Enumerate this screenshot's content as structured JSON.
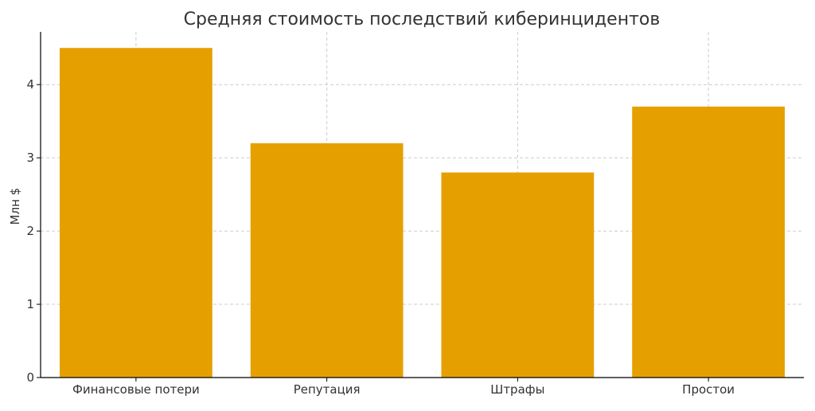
{
  "chart_data": {
    "type": "bar",
    "title": "Средняя стоимость последствий киберинцидентов",
    "xlabel": "",
    "ylabel": "Млн $",
    "categories": [
      "Финансовые потери",
      "Репутация",
      "Штрафы",
      "Простои"
    ],
    "values": [
      4.5,
      3.2,
      2.8,
      3.7
    ],
    "ylim": [
      0,
      4.72
    ],
    "yticks": [
      0,
      1,
      2,
      3,
      4
    ],
    "grid": true,
    "bar_color": "#e5a000",
    "grid_color": "#cccccc",
    "axis_color": "#000000",
    "text_color": "#333333"
  }
}
